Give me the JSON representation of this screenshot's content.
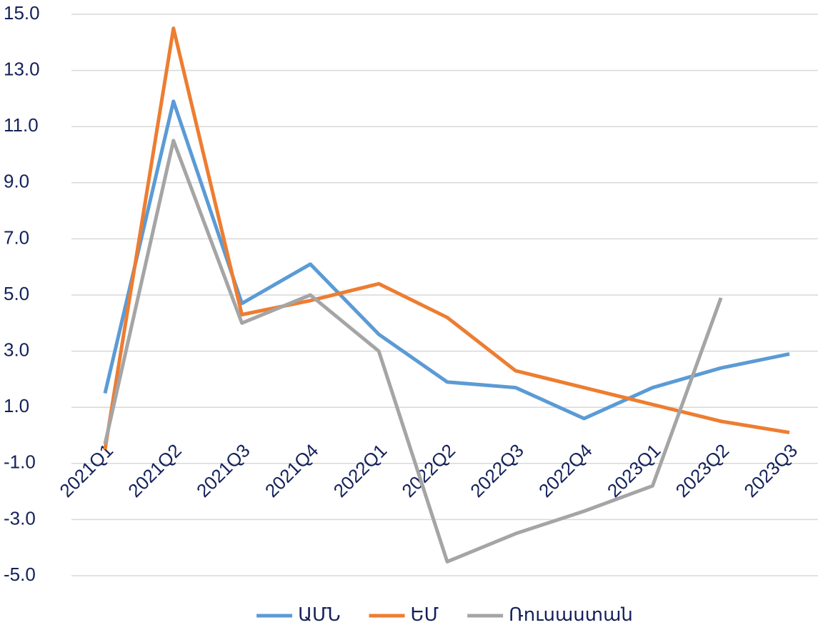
{
  "chart_data": {
    "type": "line",
    "categories": [
      "2021Q1",
      "2021Q2",
      "2021Q3",
      "2021Q4",
      "2022Q1",
      "2022Q2",
      "2022Q3",
      "2022Q4",
      "2023Q1",
      "2023Q2",
      "2023Q3"
    ],
    "series": [
      {
        "name": "ԱՄՆ",
        "color": "#5b9bd5",
        "values": [
          1.5,
          11.9,
          4.7,
          6.1,
          3.6,
          1.9,
          1.7,
          0.6,
          1.7,
          2.4,
          2.9
        ]
      },
      {
        "name": "ԵՄ",
        "color": "#ed7d31",
        "values": [
          -0.5,
          14.5,
          4.3,
          4.8,
          5.4,
          4.2,
          2.3,
          1.7,
          1.1,
          0.5,
          0.1
        ]
      },
      {
        "name": "Ռուսաստան",
        "color": "#a5a5a5",
        "values": [
          -0.3,
          10.5,
          4.0,
          5.0,
          3.0,
          -4.5,
          -3.5,
          -2.7,
          -1.8,
          4.9,
          null
        ]
      }
    ],
    "ylim": [
      -5,
      15
    ],
    "yticks": [
      {
        "value": -5,
        "label": "-5.0"
      },
      {
        "value": -3,
        "label": "-3.0"
      },
      {
        "value": -1,
        "label": "-1.0"
      },
      {
        "value": 1,
        "label": "1.0"
      },
      {
        "value": 3,
        "label": "3.0"
      },
      {
        "value": 5,
        "label": "5.0"
      },
      {
        "value": 7,
        "label": "7.0"
      },
      {
        "value": 9,
        "label": "9.0"
      },
      {
        "value": 11,
        "label": "11.0"
      },
      {
        "value": 13,
        "label": "13.0"
      },
      {
        "value": 15,
        "label": "15.0"
      }
    ],
    "grid": true,
    "legend": "bottom"
  }
}
